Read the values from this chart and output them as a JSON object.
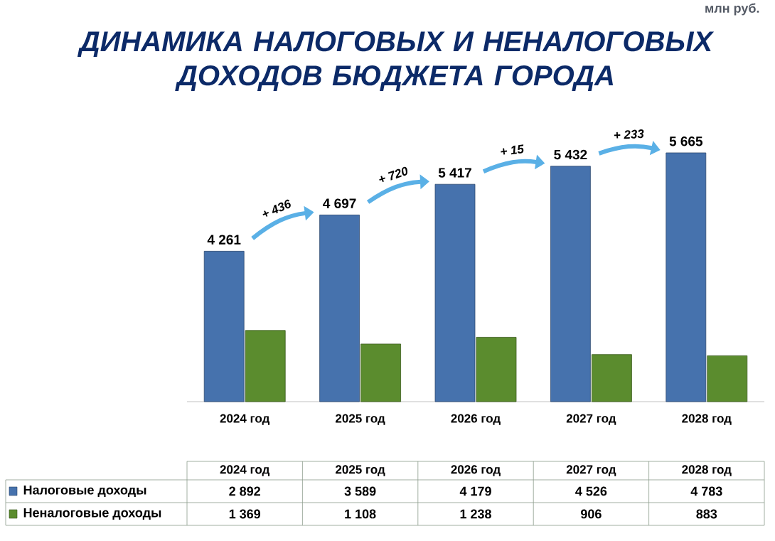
{
  "chart_data": {
    "type": "bar",
    "title": "ДИНАМИКА НАЛОГОВЫХ И НЕНАЛОГОВЫХ ДОХОДОВ БЮДЖЕТА ГОРОДА",
    "categories": [
      "2024 год",
      "2025 год",
      "2026 год",
      "2027 год",
      "2028 год"
    ],
    "series": [
      {
        "name": "Налоговые доходы",
        "color": "#4672ad",
        "values": [
          2892,
          3589,
          4179,
          4526,
          4783
        ],
        "value_labels": [
          "2 892",
          "3 589",
          "4 179",
          "4 526",
          "4 783"
        ]
      },
      {
        "name": "Неналоговые доходы",
        "color": "#5b8c2e",
        "values": [
          1369,
          1108,
          1238,
          906,
          883
        ],
        "value_labels": [
          "1 369",
          "1 108",
          "1 238",
          "906",
          "883"
        ]
      }
    ],
    "totals": [
      "4 261",
      "4 697",
      "5 417",
      "5 432",
      "5 665"
    ],
    "annotations": [
      "млн руб.",
      "+ 436",
      "+ 720",
      "+ 15",
      "+ 233"
    ],
    "legend": "bottom"
  }
}
